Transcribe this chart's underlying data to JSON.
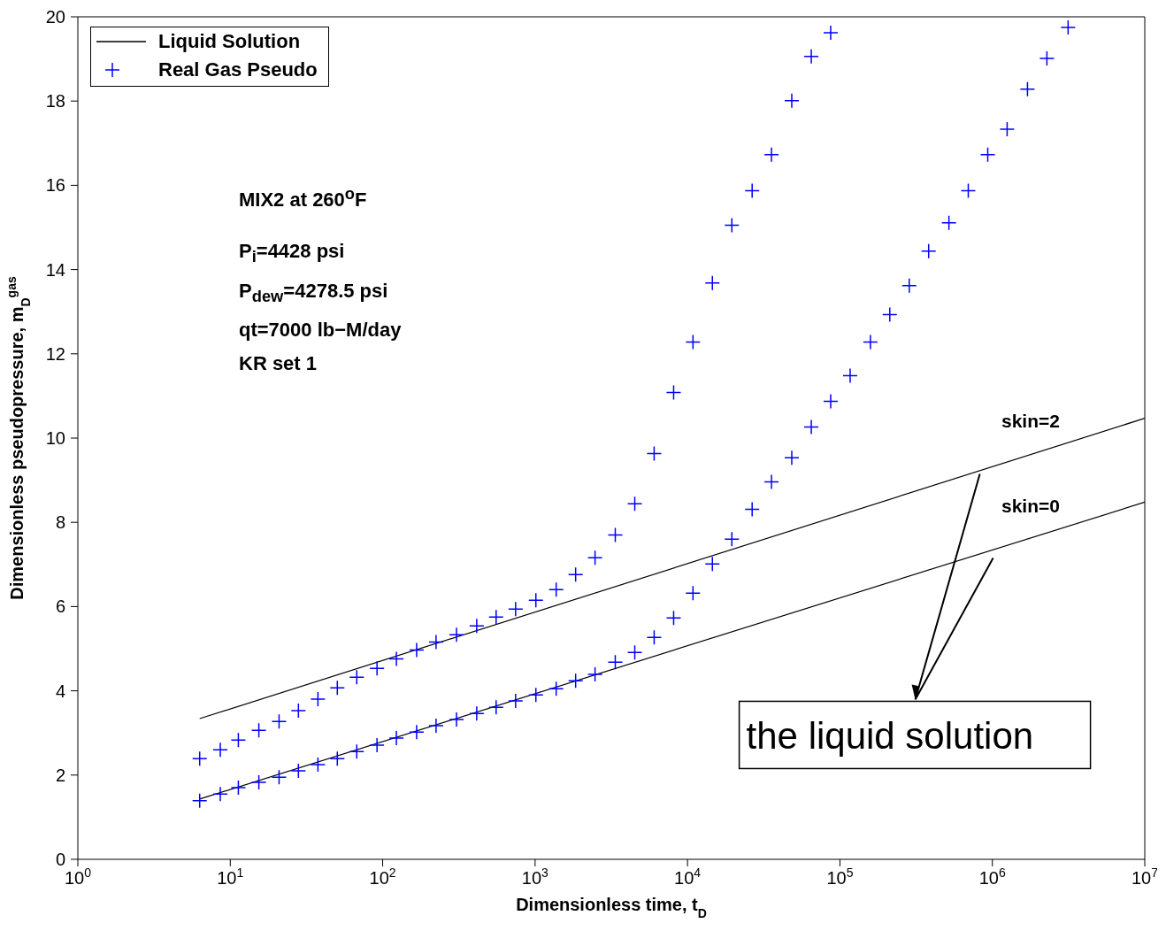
{
  "chart_data": {
    "type": "scatter",
    "xlabel": "Dimensionless time, t$_{D}$",
    "ylabel": "Dimensionless pseudopressure, m$_{D}$$^{gas}$",
    "log": "x",
    "xlim": [
      1,
      10000000
    ],
    "ylim": [
      0,
      20
    ],
    "xticks": [
      {
        "value": 1,
        "label": "10$^{0}$"
      },
      {
        "value": 10,
        "label": "10$^{1}$"
      },
      {
        "value": 100,
        "label": "10$^{2}$"
      },
      {
        "value": 1000,
        "label": "10$^{3}$"
      },
      {
        "value": 10000,
        "label": "10$^{4}$"
      },
      {
        "value": 100000,
        "label": "10$^{5}$"
      },
      {
        "value": 1000000,
        "label": "10$^{6}$"
      },
      {
        "value": 10000000,
        "label": "10$^{7}$"
      }
    ],
    "yticks": [
      0,
      2,
      4,
      6,
      8,
      10,
      12,
      14,
      16,
      18,
      20
    ],
    "legend": "top left",
    "line_style": "solid",
    "series": [
      {
        "name": "Liquid Solution",
        "type": "line",
        "marker": "none",
        "color": "#000000",
        "x": [
          6.3,
          10000000
        ],
        "values": [
          3.34,
          10.47
        ]
      },
      {
        "type": "line",
        "marker": "none",
        "color": "#000000",
        "x": [
          6.3,
          10000000
        ],
        "values": [
          1.43,
          8.48
        ]
      },
      {
        "name": "Real Gas Pseudo",
        "marker": "cross",
        "color": "#0000ff",
        "x": [
          6.3,
          8.6,
          11.3,
          15.4,
          20.9,
          28,
          37.6,
          50.4,
          67.6,
          91.8,
          123,
          167,
          224,
          305,
          414,
          555,
          745,
          1012,
          1375,
          1845,
          2473,
          3357,
          4508,
          6040,
          8110,
          10860,
          14560,
          19540,
          26550,
          35560,
          48310,
          64860,
          86960
        ],
        "values": [
          2.39,
          2.6,
          2.83,
          3.06,
          3.27,
          3.53,
          3.8,
          4.07,
          4.32,
          4.53,
          4.76,
          4.97,
          5.16,
          5.33,
          5.54,
          5.75,
          5.94,
          6.15,
          6.4,
          6.76,
          7.16,
          7.7,
          8.44,
          9.63,
          11.08,
          12.28,
          13.68,
          15.05,
          15.87,
          16.73,
          18.01,
          19.06,
          19.62
        ]
      },
      {
        "marker": "cross",
        "color": "#0000ff",
        "x": [
          6.3,
          8.6,
          11.3,
          15.4,
          20.9,
          28,
          37.6,
          50.4,
          67.6,
          91.8,
          123,
          167,
          224,
          305,
          414,
          555,
          745,
          1012,
          1375,
          1845,
          2473,
          3357,
          4508,
          6040,
          8110,
          10860,
          14560,
          19540,
          26550,
          35560,
          48310,
          64860,
          86960,
          116700,
          158500,
          212400,
          285000,
          382000,
          519000,
          695000,
          933000,
          1250000,
          1700000,
          2280000,
          3140000
        ],
        "values": [
          1.39,
          1.55,
          1.7,
          1.83,
          1.95,
          2.1,
          2.25,
          2.39,
          2.56,
          2.71,
          2.88,
          3.02,
          3.17,
          3.32,
          3.46,
          3.61,
          3.76,
          3.9,
          4.05,
          4.24,
          4.39,
          4.68,
          4.91,
          5.27,
          5.73,
          6.32,
          7.01,
          7.6,
          8.31,
          8.96,
          9.53,
          10.26,
          10.87,
          11.48,
          12.28,
          12.93,
          13.62,
          14.44,
          15.11,
          15.87,
          16.73,
          17.33,
          18.28,
          19.01,
          19.75
        ]
      }
    ],
    "annotations": [
      "MIX2 at 260$^{o}$F",
      "P$_{i}$=4428 psi",
      "P$_{dew}$=4278.5 psi",
      "qt=7000 lb−M/day",
      "KR set 1",
      "skin=2",
      "skin=0",
      {
        "text": "the liquid solution",
        "x": 828000,
        "y": 9.15
      }
    ]
  }
}
